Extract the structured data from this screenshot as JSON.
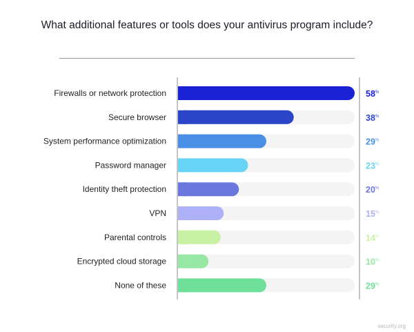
{
  "chart_data": {
    "type": "bar",
    "orientation": "horizontal",
    "title": "What additional features or tools does your antivirus program include?",
    "categories": [
      "Firewalls or network protection",
      "Secure browser",
      "System performance optimization",
      "Password manager",
      "Identity theft protection",
      "VPN",
      "Parental controls",
      "Encrypted cloud storage",
      "None of these"
    ],
    "values": [
      58,
      38,
      29,
      23,
      20,
      15,
      14,
      10,
      29
    ],
    "value_suffix": "%",
    "xlim": [
      0,
      58
    ],
    "colors": [
      "#1b22d6",
      "#2a45c8",
      "#4a8fe6",
      "#67d4f5",
      "#6a78dd",
      "#aeb1f7",
      "#c7f2a4",
      "#97e8a4",
      "#6fe09a"
    ],
    "track_color": "#f4f4f4",
    "grid": false,
    "legend": "none"
  },
  "footer": {
    "watermark": "security.org"
  }
}
